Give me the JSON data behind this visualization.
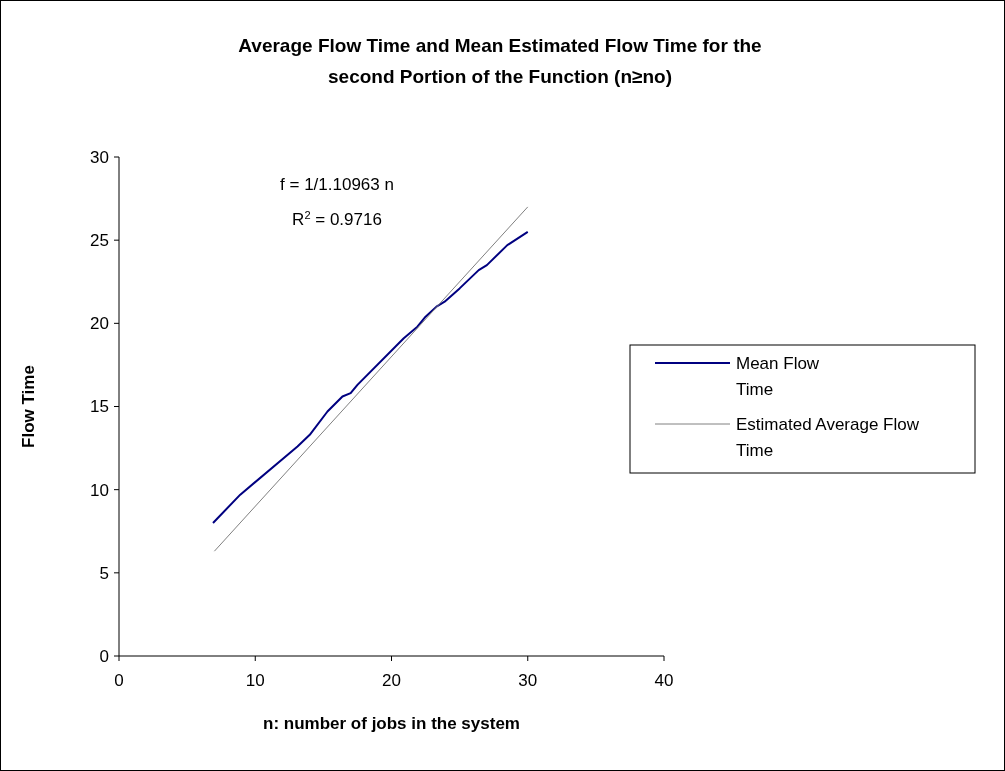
{
  "chart_data": {
    "type": "line",
    "title": "Average Flow Time and Mean Estimated Flow Time for the second Portion of the Function (n≥no)",
    "xlabel": "n: number of jobs in the system",
    "ylabel": "Flow Time",
    "xlim": [
      0,
      40
    ],
    "xticks": [
      0,
      10,
      20,
      30,
      40
    ],
    "ylim": [
      0,
      30
    ],
    "yticks": [
      0,
      5,
      10,
      15,
      20,
      25,
      30
    ],
    "grid": false,
    "legend": "right",
    "annotations": [
      "f = 1/1.10963 n",
      "R$^{2}$ = 0.9716"
    ],
    "series": [
      {
        "name": "Mean Flow  Time",
        "color": "#000080",
        "x": [
          6.9,
          8.9,
          13.1,
          14.0,
          15.3,
          16.4,
          17.0,
          17.5,
          20.9,
          21.9,
          22.5,
          23.3,
          23.9,
          25.0,
          26.4,
          27.0,
          28.5,
          30.0
        ],
        "values": [
          8.0,
          9.7,
          12.6,
          13.3,
          14.7,
          15.6,
          15.8,
          16.3,
          19.1,
          19.8,
          20.4,
          21.0,
          21.3,
          22.1,
          23.2,
          23.5,
          24.7,
          25.5
        ]
      },
      {
        "name": "Estimated Average Flow Time",
        "color": "#808080",
        "x": [
          7,
          30
        ],
        "values": [
          6.3,
          27.0
        ]
      }
    ]
  }
}
